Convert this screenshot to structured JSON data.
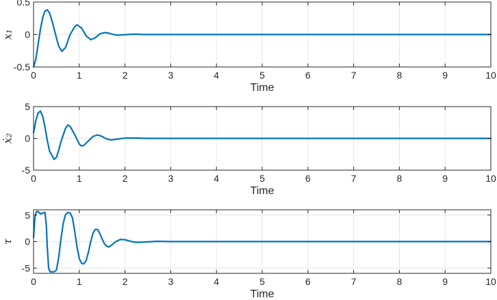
{
  "chart_data": [
    {
      "type": "line",
      "xlabel": "Time",
      "ylabel": "x₁",
      "xlim": [
        0,
        10
      ],
      "ylim": [
        -0.5,
        0.5
      ],
      "xticks": [
        0,
        1,
        2,
        3,
        4,
        5,
        6,
        7,
        8,
        9,
        10
      ],
      "yticks": [
        -0.5,
        0,
        0.5
      ],
      "ytick_labels": [
        "-0.5",
        "0",
        "0.5"
      ],
      "grid": true,
      "series": [
        {
          "color": "#0072BD",
          "x": [
            0,
            0.05,
            0.1,
            0.15,
            0.2,
            0.25,
            0.3,
            0.35,
            0.4,
            0.5,
            0.55,
            0.62,
            0.7,
            0.75,
            0.8,
            0.9,
            0.95,
            1.05,
            1.15,
            1.25,
            1.35,
            1.45,
            1.55,
            1.65,
            1.75,
            1.85,
            1.95,
            2.05,
            2.2,
            2.4,
            2.6,
            3,
            4,
            5,
            6,
            7,
            8,
            9,
            10
          ],
          "y": [
            -0.5,
            -0.38,
            -0.15,
            0.08,
            0.26,
            0.36,
            0.38,
            0.33,
            0.22,
            -0.05,
            -0.18,
            -0.26,
            -0.2,
            -0.1,
            0.0,
            0.12,
            0.15,
            0.1,
            -0.02,
            -0.08,
            -0.05,
            0.01,
            0.03,
            0.02,
            0.0,
            -0.01,
            -0.005,
            0.0,
            0.005,
            0.0,
            0.0,
            0,
            0,
            0,
            0,
            0,
            0,
            0,
            0
          ]
        }
      ]
    },
    {
      "type": "line",
      "xlabel": "Time",
      "ylabel": "ẋ₂",
      "xlim": [
        0,
        10
      ],
      "ylim": [
        -5,
        5
      ],
      "xticks": [
        0,
        1,
        2,
        3,
        4,
        5,
        6,
        7,
        8,
        9,
        10
      ],
      "yticks": [
        -5,
        0,
        5
      ],
      "ytick_labels": [
        "-5",
        "0",
        "5"
      ],
      "grid": true,
      "series": [
        {
          "color": "#0072BD",
          "x": [
            0,
            0.05,
            0.1,
            0.15,
            0.2,
            0.25,
            0.3,
            0.35,
            0.45,
            0.5,
            0.55,
            0.6,
            0.7,
            0.75,
            0.8,
            0.9,
            1.0,
            1.05,
            1.1,
            1.2,
            1.3,
            1.4,
            1.5,
            1.6,
            1.7,
            1.8,
            1.9,
            2.0,
            2.2,
            2.5,
            3,
            4,
            5,
            6,
            7,
            8,
            9,
            10
          ],
          "y": [
            0.9,
            2.8,
            4.0,
            4.3,
            3.5,
            1.8,
            -0.3,
            -2.0,
            -3.3,
            -3.0,
            -1.9,
            -0.5,
            1.6,
            2.1,
            1.9,
            0.6,
            -0.9,
            -1.2,
            -1.1,
            -0.4,
            0.3,
            0.55,
            0.3,
            -0.1,
            -0.25,
            -0.15,
            -0.05,
            0.05,
            0.05,
            0.0,
            0,
            0,
            0,
            0,
            0,
            0,
            0,
            0
          ]
        }
      ]
    },
    {
      "type": "line",
      "xlabel": "Time",
      "ylabel": "τ",
      "xlim": [
        0,
        10
      ],
      "ylim": [
        -6,
        6
      ],
      "xticks": [
        0,
        1,
        2,
        3,
        4,
        5,
        6,
        7,
        8,
        9,
        10
      ],
      "yticks": [
        -5,
        0,
        5
      ],
      "ytick_labels": [
        "-5",
        "0",
        "5"
      ],
      "grid": true,
      "series": [
        {
          "color": "#0072BD",
          "x": [
            0,
            0.03,
            0.06,
            0.1,
            0.15,
            0.2,
            0.25,
            0.28,
            0.3,
            0.33,
            0.36,
            0.4,
            0.45,
            0.5,
            0.55,
            0.6,
            0.65,
            0.7,
            0.75,
            0.8,
            0.85,
            0.9,
            0.95,
            1.0,
            1.05,
            1.1,
            1.15,
            1.2,
            1.25,
            1.3,
            1.35,
            1.4,
            1.45,
            1.5,
            1.55,
            1.6,
            1.65,
            1.7,
            1.8,
            1.9,
            2.0,
            2.1,
            2.2,
            2.3,
            2.5,
            2.7,
            3,
            4,
            5,
            6,
            7,
            8,
            9,
            10
          ],
          "y": [
            0.8,
            4.5,
            5.6,
            5.7,
            5.2,
            5.4,
            5.5,
            3.0,
            -1.0,
            -5.0,
            -5.7,
            -5.7,
            -5.7,
            -5.4,
            -3.0,
            0.5,
            3.5,
            5.1,
            5.5,
            5.4,
            4.5,
            2.0,
            -1.0,
            -3.2,
            -4.1,
            -4.2,
            -3.6,
            -2.0,
            0.0,
            1.6,
            2.3,
            2.3,
            1.5,
            0.5,
            -0.4,
            -0.9,
            -1.0,
            -0.7,
            0.0,
            0.4,
            0.35,
            0.1,
            -0.1,
            -0.15,
            -0.05,
            0.05,
            0.0,
            0,
            0,
            0,
            0,
            0,
            0,
            0
          ]
        }
      ]
    }
  ]
}
